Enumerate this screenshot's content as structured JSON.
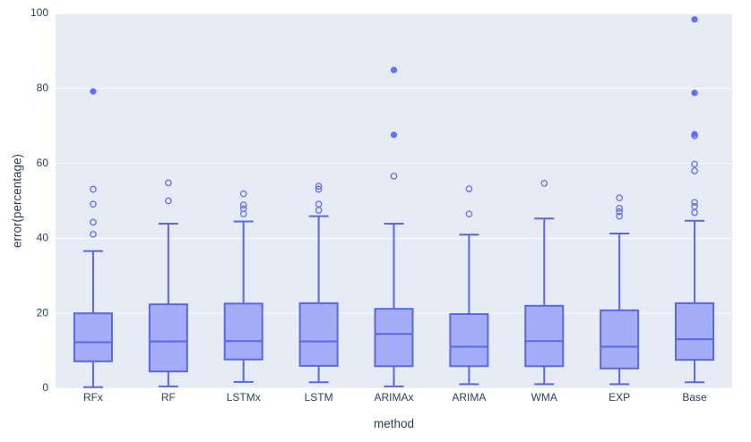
{
  "colors": {
    "plot_bg": "#e5ecf6",
    "grid": "#ffffff",
    "box_line": "#5b66ea",
    "box_fill": "#a4adf8",
    "marker": "#636efa",
    "text": "#2a3f5f",
    "canvas_bg": "#ffffff"
  },
  "chart_data": {
    "type": "box",
    "title": "",
    "xlabel": "method",
    "ylabel": "error(percentage)",
    "ylim": [
      0,
      100
    ],
    "yticks": [
      0,
      20,
      40,
      60,
      80,
      100
    ],
    "grid": true,
    "legend": "none",
    "categories": [
      "RFx",
      "RF",
      "LSTMx",
      "LSTM",
      "ARIMAx",
      "ARIMA",
      "WMA",
      "EXP",
      "Base"
    ],
    "series": [
      {
        "name": "RFx",
        "low": 0.3,
        "q1": 7.2,
        "median": 12.3,
        "q3": 20.0,
        "high": 36.6,
        "outliers_open": [
          41.1,
          44.3,
          49.1,
          53.1
        ],
        "outliers_filled": [
          79.2
        ]
      },
      {
        "name": "RF",
        "low": 0.5,
        "q1": 4.5,
        "median": 12.5,
        "q3": 22.4,
        "high": 43.9,
        "outliers_open": [
          50.0,
          54.8
        ],
        "outliers_filled": []
      },
      {
        "name": "LSTMx",
        "low": 1.7,
        "q1": 7.7,
        "median": 12.6,
        "q3": 22.6,
        "high": 44.5,
        "outliers_open": [
          46.5,
          47.9,
          48.9,
          51.9
        ],
        "outliers_filled": []
      },
      {
        "name": "LSTM",
        "low": 1.6,
        "q1": 6.0,
        "median": 12.5,
        "q3": 22.7,
        "high": 45.9,
        "outliers_open": [
          47.5,
          49.1,
          53.1,
          53.9
        ],
        "outliers_filled": []
      },
      {
        "name": "ARIMAx",
        "low": 0.5,
        "q1": 5.9,
        "median": 14.5,
        "q3": 21.2,
        "high": 43.9,
        "outliers_open": [
          56.6
        ],
        "outliers_filled": [
          67.6,
          84.9
        ]
      },
      {
        "name": "ARIMA",
        "low": 1.1,
        "q1": 5.9,
        "median": 11.1,
        "q3": 19.8,
        "high": 41.0,
        "outliers_open": [
          46.5,
          53.2
        ],
        "outliers_filled": []
      },
      {
        "name": "WMA",
        "low": 1.1,
        "q1": 5.9,
        "median": 12.6,
        "q3": 22.0,
        "high": 45.3,
        "outliers_open": [
          54.7
        ],
        "outliers_filled": []
      },
      {
        "name": "EXP",
        "low": 1.1,
        "q1": 5.3,
        "median": 11.1,
        "q3": 20.8,
        "high": 41.3,
        "outliers_open": [
          45.9,
          47.1,
          48.0,
          50.8
        ],
        "outliers_filled": []
      },
      {
        "name": "Base",
        "low": 1.6,
        "q1": 7.6,
        "median": 13.1,
        "q3": 22.7,
        "high": 44.7,
        "outliers_open": [
          46.9,
          48.5,
          49.6,
          58.0,
          59.8,
          67.4
        ],
        "outliers_filled": [
          67.8,
          78.8,
          98.4
        ]
      }
    ]
  }
}
